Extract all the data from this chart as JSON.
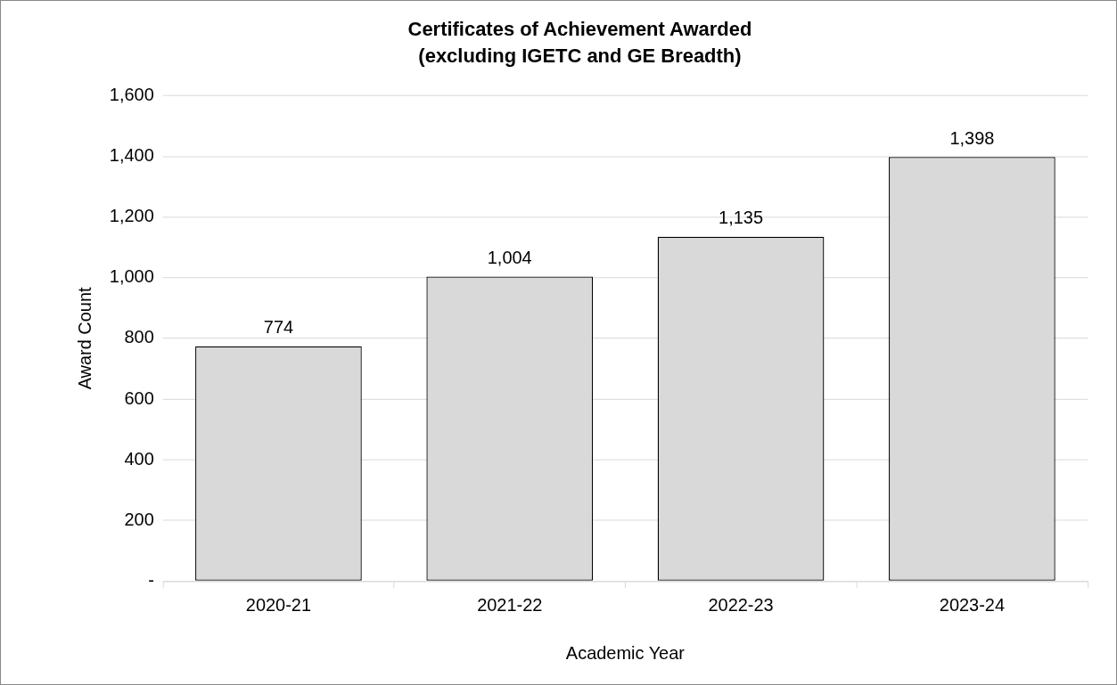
{
  "chart_data": {
    "type": "bar",
    "title": "Certificates of Achievement Awarded",
    "subtitle": "(excluding IGETC and GE Breadth)",
    "xlabel": "Academic Year",
    "ylabel": "Award Count",
    "categories": [
      "2020-21",
      "2021-22",
      "2022-23",
      "2023-24"
    ],
    "values": [
      774,
      1004,
      1135,
      1398
    ],
    "color": "#d9d9d9",
    "ylim": [
      0,
      1600
    ],
    "yticks": [
      {
        "value": 0,
        "label": "-"
      },
      {
        "value": 200,
        "label": "200"
      },
      {
        "value": 400,
        "label": "400"
      },
      {
        "value": 600,
        "label": "600"
      },
      {
        "value": 800,
        "label": "800"
      },
      {
        "value": 1000,
        "label": "1,000"
      },
      {
        "value": 1200,
        "label": "1,200"
      },
      {
        "value": 1400,
        "label": "1,400"
      },
      {
        "value": 1600,
        "label": "1,600"
      }
    ],
    "value_labels": [
      "774",
      "1,004",
      "1,135",
      "1,398"
    ],
    "grid": "y",
    "legend": false
  }
}
